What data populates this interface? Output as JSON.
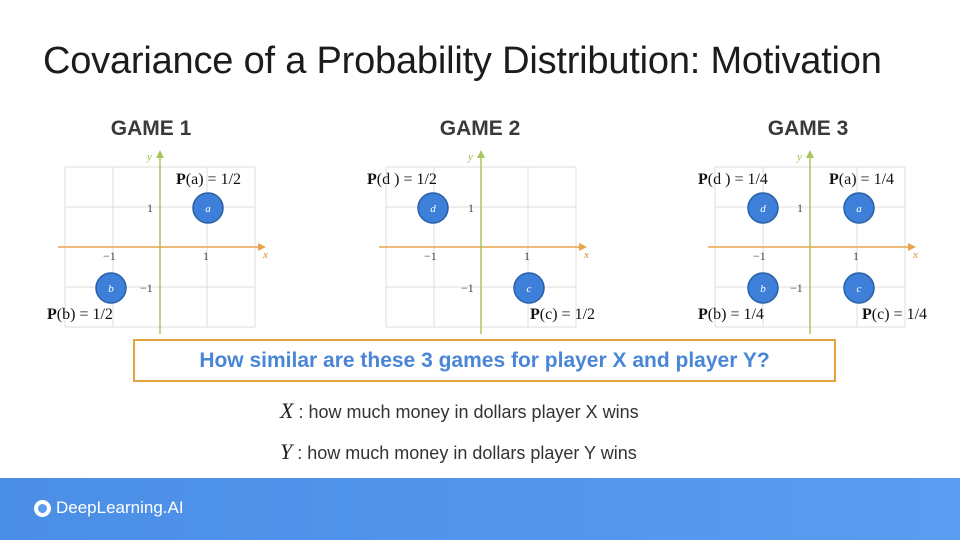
{
  "title": "Covariance of a Probability Distribution: Motivation",
  "games": [
    {
      "label": "GAME 1"
    },
    {
      "label": "GAME 2"
    },
    {
      "label": "GAME 3"
    }
  ],
  "axes": {
    "x_name": "x",
    "y_name": "y",
    "tick_pos": "1",
    "tick_neg": "−1"
  },
  "points": {
    "a": "a",
    "b": "b",
    "c": "c",
    "d": "d"
  },
  "probabilities": {
    "g1_a": {
      "P": "P",
      "rest": "(a) = 1/2"
    },
    "g1_b": {
      "P": "P",
      "rest": "(b) = 1/2"
    },
    "g2_d": {
      "P": "P",
      "rest": "(d ) = 1/2"
    },
    "g2_c": {
      "P": "P",
      "rest": "(c) = 1/2"
    },
    "g3_d": {
      "P": "P",
      "rest": "(d ) = 1/4"
    },
    "g3_a": {
      "P": "P",
      "rest": "(a) = 1/4"
    },
    "g3_b": {
      "P": "P",
      "rest": "(b) = 1/4"
    },
    "g3_c": {
      "P": "P",
      "rest": "(c) = 1/4"
    }
  },
  "question": "How similar are these 3 games for player X and player Y?",
  "definitions": {
    "x_var": "X",
    "x_text": " : how much money in dollars player X wins",
    "y_var": "Y",
    "y_text": " : how much money in dollars player Y wins"
  },
  "footer": {
    "brand": "DeepLearning.AI"
  },
  "colors": {
    "point": "#3d7fd9",
    "x_axis": "#e8a44a",
    "y_axis": "#a6c55a",
    "question_border": "#e2a23e",
    "question_text": "#4a86d8",
    "footer": "#4b8ee6"
  }
}
